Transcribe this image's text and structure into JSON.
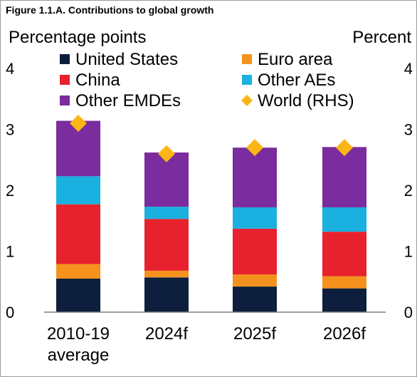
{
  "figure_title": "Figure 1.1.A. Contributions to global growth",
  "chart_data": {
    "type": "bar",
    "stacked": true,
    "title": "Figure 1.1.A. Contributions to global growth",
    "ylabel_left": "Percentage points",
    "ylabel_right": "Percent",
    "ylim_left": [
      0,
      4
    ],
    "ylim_right": [
      0,
      4
    ],
    "yticks": [
      0,
      1,
      2,
      3,
      4
    ],
    "grid": false,
    "legend_position": "top",
    "categories": [
      [
        "2010-19",
        "average"
      ],
      [
        "2024f"
      ],
      [
        "2025f"
      ],
      [
        "2026f"
      ]
    ],
    "series": [
      {
        "name": "United States",
        "color": "#0d1f3c",
        "values": [
          0.55,
          0.57,
          0.42,
          0.39
        ]
      },
      {
        "name": "Euro area",
        "color": "#f5921e",
        "values": [
          0.24,
          0.11,
          0.2,
          0.2
        ]
      },
      {
        "name": "China",
        "color": "#e8212e",
        "values": [
          0.98,
          0.85,
          0.75,
          0.73
        ]
      },
      {
        "name": "Other AEs",
        "color": "#1ab0df",
        "values": [
          0.46,
          0.2,
          0.35,
          0.4
        ]
      },
      {
        "name": "Other EMDEs",
        "color": "#7b2c9e",
        "values": [
          0.91,
          0.89,
          0.98,
          0.99
        ]
      }
    ],
    "line_series": {
      "name": "World (RHS)",
      "axis": "right",
      "marker": "diamond",
      "color": "#fbb515",
      "values": [
        3.1,
        2.6,
        2.7,
        2.7
      ]
    },
    "legend": [
      {
        "name": "United States",
        "color": "#0d1f3c",
        "marker": "square"
      },
      {
        "name": "Euro area",
        "color": "#f5921e",
        "marker": "square"
      },
      {
        "name": "China",
        "color": "#e8212e",
        "marker": "square"
      },
      {
        "name": "Other AEs",
        "color": "#1ab0df",
        "marker": "square"
      },
      {
        "name": "Other EMDEs",
        "color": "#7b2c9e",
        "marker": "square"
      },
      {
        "name": "World (RHS)",
        "color": "#fbb515",
        "marker": "diamond"
      }
    ]
  }
}
